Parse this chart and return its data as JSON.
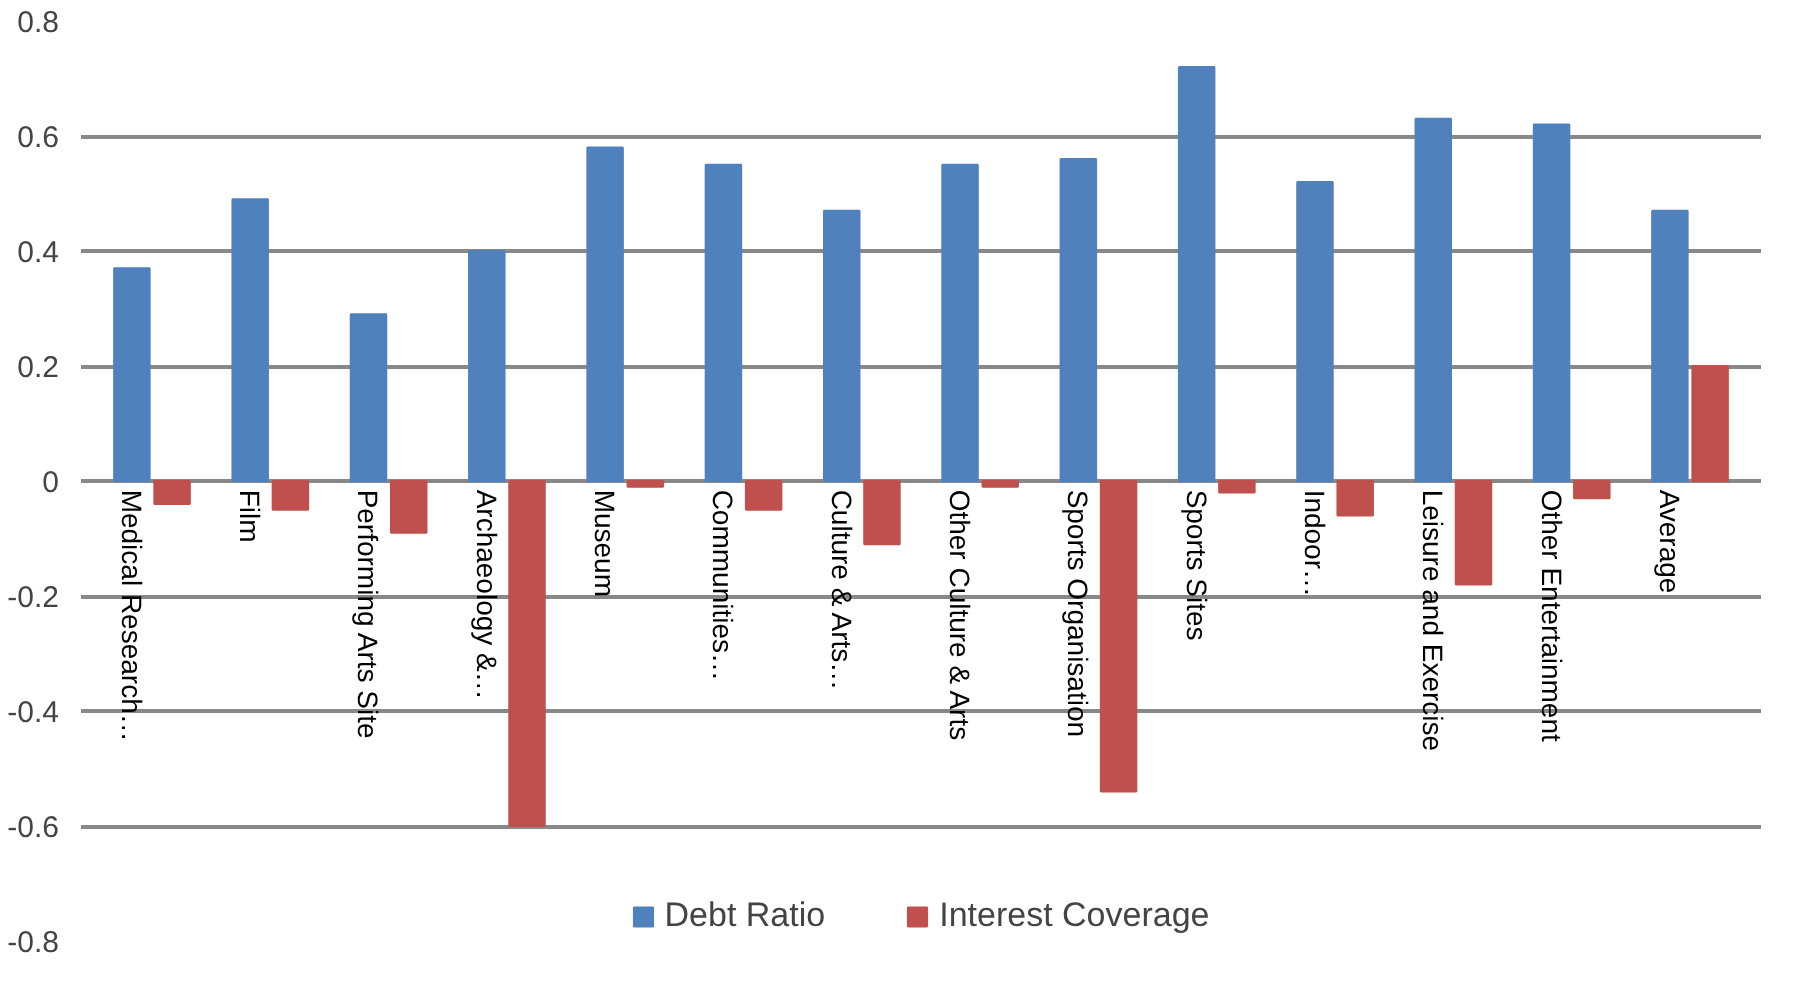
{
  "chart_data": {
    "type": "bar",
    "categories": [
      "Medical Research…",
      "Film",
      "Performing Arts Site",
      "Archaeology &…",
      "Museum",
      "Communities…",
      "Culture & Arts…",
      "Other Culture & Arts",
      "Sports Organisation",
      "Sports Sites",
      "Indoor…",
      "Leisure and Exercise",
      "Other Entertainment",
      "Average"
    ],
    "series": [
      {
        "name": "Debt Ratio",
        "color": "#4f81bd",
        "values": [
          0.37,
          0.49,
          0.29,
          0.4,
          0.58,
          0.55,
          0.47,
          0.55,
          0.56,
          0.72,
          0.52,
          0.63,
          0.62,
          0.47
        ]
      },
      {
        "name": "Interest Coverage",
        "color": "#c0504d",
        "values": [
          -0.04,
          -0.05,
          -0.09,
          -0.6,
          -0.01,
          -0.05,
          -0.11,
          -0.01,
          -0.54,
          -0.02,
          -0.06,
          -0.18,
          -0.03,
          0.2
        ]
      }
    ],
    "ylim": [
      -0.8,
      0.8
    ],
    "yticks": [
      {
        "value": -0.8,
        "label": "-0.8"
      },
      {
        "value": -0.6,
        "label": "-0.6"
      },
      {
        "value": -0.4,
        "label": "-0.4"
      },
      {
        "value": -0.2,
        "label": "-0.2"
      },
      {
        "value": 0,
        "label": "0"
      },
      {
        "value": 0.2,
        "label": "0.2"
      },
      {
        "value": 0.4,
        "label": "0.4"
      },
      {
        "value": 0.6,
        "label": "0.6"
      },
      {
        "value": 0.8,
        "label": "0.8"
      }
    ],
    "grid": "y",
    "legend": "bottom"
  }
}
